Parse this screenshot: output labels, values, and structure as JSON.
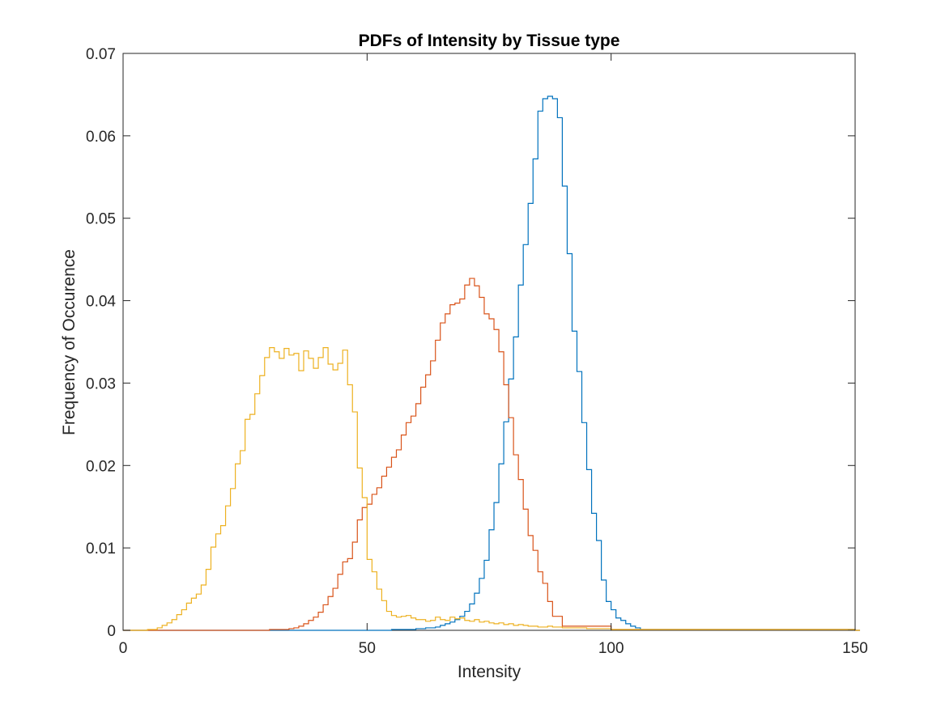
{
  "chart_data": {
    "type": "line",
    "title": "PDFs of Intensity by Tissue type",
    "xlabel": "Intensity",
    "ylabel": "Frequency of Occurence",
    "xlim": [
      0,
      150
    ],
    "ylim": [
      0,
      0.07
    ],
    "x_ticks": [
      "0",
      "50",
      "100",
      "150"
    ],
    "y_ticks": [
      "0",
      "0.01",
      "0.02",
      "0.03",
      "0.04",
      "0.05",
      "0.06",
      "0.07"
    ],
    "grid": false,
    "legend": "none",
    "step": true,
    "bin_width": 1,
    "series": [
      {
        "color": "#0072BD",
        "x": [
          0,
          50,
          55,
          60,
          62,
          64,
          65,
          66,
          67,
          68,
          69,
          70,
          71,
          72,
          73,
          74,
          75,
          76,
          77,
          78,
          79,
          80,
          81,
          82,
          83,
          84,
          85,
          86,
          87,
          88,
          89,
          90,
          91,
          92,
          93,
          94,
          95,
          96,
          97,
          98,
          99,
          100,
          101,
          102,
          103,
          104,
          105,
          106,
          110,
          150
        ],
        "y": [
          0,
          0,
          0.0001,
          0.0002,
          0.0003,
          0.0004,
          0.0006,
          0.0008,
          0.001,
          0.0013,
          0.0017,
          0.0023,
          0.0032,
          0.0045,
          0.0063,
          0.0085,
          0.0122,
          0.0155,
          0.0202,
          0.0253,
          0.0305,
          0.0356,
          0.0419,
          0.0468,
          0.0518,
          0.0572,
          0.063,
          0.0645,
          0.0648,
          0.0645,
          0.0622,
          0.0539,
          0.0457,
          0.0363,
          0.0314,
          0.0252,
          0.0195,
          0.0142,
          0.0109,
          0.0061,
          0.0035,
          0.0025,
          0.0015,
          0.0012,
          0.0008,
          0.0005,
          0.0003,
          0.0001,
          0.0001,
          0
        ]
      },
      {
        "color": "#D95319",
        "x": [
          0,
          20,
          30,
          34,
          35,
          36,
          37,
          38,
          39,
          40,
          41,
          42,
          43,
          44,
          45,
          46,
          47,
          48,
          49,
          50,
          51,
          52,
          53,
          54,
          55,
          56,
          57,
          58,
          59,
          60,
          61,
          62,
          63,
          64,
          65,
          66,
          67,
          68,
          69,
          70,
          71,
          72,
          73,
          74,
          75,
          76,
          77,
          78,
          79,
          80,
          81,
          82,
          83,
          84,
          85,
          86,
          87,
          88,
          90,
          100,
          150
        ],
        "y": [
          0,
          0,
          0.0001,
          0.0002,
          0.0003,
          0.0005,
          0.0008,
          0.0012,
          0.0016,
          0.0022,
          0.0031,
          0.0041,
          0.0051,
          0.0068,
          0.0083,
          0.0087,
          0.0107,
          0.0134,
          0.0149,
          0.0153,
          0.0165,
          0.0173,
          0.0187,
          0.0198,
          0.021,
          0.0219,
          0.0237,
          0.0252,
          0.026,
          0.0275,
          0.0295,
          0.031,
          0.0327,
          0.0352,
          0.0373,
          0.0384,
          0.0395,
          0.0397,
          0.0402,
          0.0419,
          0.0427,
          0.0418,
          0.0404,
          0.0384,
          0.0378,
          0.0365,
          0.0338,
          0.0298,
          0.0258,
          0.0213,
          0.0183,
          0.0147,
          0.0115,
          0.0097,
          0.0071,
          0.0057,
          0.0035,
          0.0017,
          0.0005,
          0.0001,
          0
        ]
      },
      {
        "color": "#EDB120",
        "x": [
          0,
          5,
          7,
          8,
          9,
          10,
          11,
          12,
          13,
          14,
          15,
          16,
          17,
          18,
          19,
          20,
          21,
          22,
          23,
          24,
          25,
          26,
          27,
          28,
          29,
          30,
          31,
          32,
          33,
          34,
          35,
          36,
          37,
          38,
          39,
          40,
          41,
          42,
          43,
          44,
          45,
          46,
          47,
          48,
          49,
          50,
          51,
          52,
          53,
          54,
          55,
          56,
          57,
          58,
          59,
          60,
          61,
          62,
          63,
          64,
          65,
          66,
          67,
          68,
          69,
          70,
          71,
          72,
          73,
          74,
          75,
          76,
          77,
          78,
          79,
          80,
          81,
          82,
          83,
          84,
          85,
          86,
          87,
          88,
          89,
          90,
          95,
          100,
          110,
          150
        ],
        "y": [
          0,
          0.0001,
          0.0003,
          0.0006,
          0.0009,
          0.0013,
          0.0019,
          0.0025,
          0.0033,
          0.0039,
          0.0044,
          0.0055,
          0.0074,
          0.0101,
          0.0117,
          0.0127,
          0.0151,
          0.0172,
          0.0202,
          0.0218,
          0.0256,
          0.0262,
          0.0287,
          0.0309,
          0.0331,
          0.0343,
          0.0338,
          0.033,
          0.0342,
          0.0334,
          0.0336,
          0.0315,
          0.0339,
          0.033,
          0.0318,
          0.0331,
          0.0343,
          0.0323,
          0.0316,
          0.0324,
          0.034,
          0.0298,
          0.0265,
          0.0197,
          0.0161,
          0.0086,
          0.0071,
          0.005,
          0.0036,
          0.0023,
          0.0018,
          0.0016,
          0.0017,
          0.0018,
          0.0015,
          0.0013,
          0.0013,
          0.0011,
          0.0012,
          0.0016,
          0.0013,
          0.0012,
          0.0016,
          0.0014,
          0.0015,
          0.0012,
          0.0011,
          0.0013,
          0.001,
          0.0011,
          0.0009,
          0.0008,
          0.0009,
          0.0007,
          0.0008,
          0.0006,
          0.0007,
          0.0006,
          0.0005,
          0.0005,
          0.0004,
          0.0004,
          0.0005,
          0.0004,
          0.0004,
          0.0003,
          0.0002,
          0.0001,
          0.0001,
          0
        ]
      }
    ]
  }
}
